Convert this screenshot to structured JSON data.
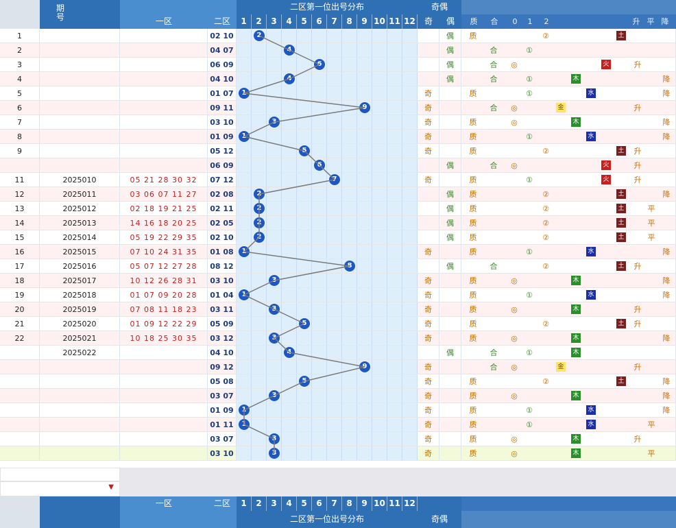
{
  "header": {
    "issue_label": "期号",
    "zone1_label": "一区",
    "zone2_label": "二区",
    "dist_title": "二区第一位出号分布",
    "oddeven_title": "奇偶",
    "col_nums": [
      "1",
      "2",
      "3",
      "4",
      "5",
      "6",
      "7",
      "8",
      "9",
      "10",
      "11",
      "12"
    ],
    "odd_label": "奇",
    "even_label": "偶",
    "tail_cols": [
      "质",
      "合",
      "0",
      "1",
      "2"
    ],
    "trend_cols": [
      "升",
      "平",
      "降"
    ]
  },
  "footer": {
    "zone1_label": "一区",
    "zone2_label": "二区",
    "dist_title": "二区第一位出号分布",
    "oddeven_title": "奇偶",
    "col_nums": [
      "1",
      "2",
      "3",
      "4",
      "5",
      "6",
      "7",
      "8",
      "9",
      "10",
      "11",
      "12"
    ]
  },
  "rows": [
    {
      "idx": "1",
      "issue": "",
      "z1": "",
      "z2": "02 10",
      "ball": 2,
      "oe": "偶",
      "type": "质",
      "circle": "",
      "num": "②",
      "elem": "土",
      "trend": ""
    },
    {
      "idx": "2",
      "issue": "",
      "z1": "",
      "z2": "04 07",
      "ball": 4,
      "oe": "偶",
      "type": "合",
      "circle": "①",
      "num": "",
      "elem": "",
      "trend": ""
    },
    {
      "idx": "3",
      "issue": "",
      "z1": "",
      "z2": "06 09",
      "ball": 6,
      "oe": "偶",
      "type": "合",
      "circle": "◎",
      "num": "",
      "elem": "火",
      "trend": "升"
    },
    {
      "idx": "4",
      "issue": "",
      "z1": "",
      "z2": "04 10",
      "ball": 4,
      "oe": "偶",
      "type": "合",
      "circle": "①",
      "num": "",
      "elem": "木",
      "trend": "降"
    },
    {
      "idx": "5",
      "issue": "",
      "z1": "",
      "z2": "01 07",
      "ball": 1,
      "oe": "奇",
      "type": "质",
      "circle": "①",
      "num": "",
      "elem": "水",
      "trend": "降"
    },
    {
      "idx": "6",
      "issue": "",
      "z1": "",
      "z2": "09 11",
      "ball": 9,
      "oe": "奇",
      "type": "合",
      "circle": "◎",
      "num": "",
      "elem": "金",
      "trend": "升"
    },
    {
      "idx": "7",
      "issue": "",
      "z1": "",
      "z2": "03 10",
      "ball": 3,
      "oe": "奇",
      "type": "质",
      "circle": "◎",
      "num": "",
      "elem": "木",
      "trend": "降"
    },
    {
      "idx": "8",
      "issue": "",
      "z1": "",
      "z2": "01 09",
      "ball": 1,
      "oe": "奇",
      "type": "质",
      "circle": "①",
      "num": "",
      "elem": "水",
      "trend": "降"
    },
    {
      "idx": "9",
      "issue": "",
      "z1": "",
      "z2": "05 12",
      "ball": 5,
      "oe": "奇",
      "type": "质",
      "circle": "",
      "num": "②",
      "elem": "土",
      "trend": "升"
    },
    {
      "idx": "",
      "issue": "",
      "z1": "",
      "z2": "06 09",
      "ball": 6,
      "oe": "偶",
      "type": "合",
      "circle": "◎",
      "num": "",
      "elem": "火",
      "trend": "升"
    },
    {
      "idx": "11",
      "issue": "2025010",
      "z1": "05 21 28 30 32",
      "z2": "07 12",
      "ball": 7,
      "oe": "奇",
      "type": "质",
      "circle": "①",
      "num": "",
      "elem": "火",
      "trend": "升"
    },
    {
      "idx": "12",
      "issue": "2025011",
      "z1": "03 06 07 11 27",
      "z2": "02 08",
      "ball": 2,
      "oe": "偶",
      "type": "质",
      "circle": "",
      "num": "②",
      "elem": "土",
      "trend": "降"
    },
    {
      "idx": "13",
      "issue": "2025012",
      "z1": "02 18 19 21 25",
      "z2": "02 11",
      "ball": 2,
      "oe": "偶",
      "type": "质",
      "circle": "",
      "num": "②",
      "elem": "土",
      "trend": "平"
    },
    {
      "idx": "14",
      "issue": "2025013",
      "z1": "14 16 18 20 25",
      "z2": "02 05",
      "ball": 2,
      "oe": "偶",
      "type": "质",
      "circle": "",
      "num": "②",
      "elem": "土",
      "trend": "平"
    },
    {
      "idx": "15",
      "issue": "2025014",
      "z1": "05 19 22 29 35",
      "z2": "02 10",
      "ball": 2,
      "oe": "偶",
      "type": "质",
      "circle": "",
      "num": "②",
      "elem": "土",
      "trend": "平"
    },
    {
      "idx": "16",
      "issue": "2025015",
      "z1": "07 10 24 31 35",
      "z2": "01 08",
      "ball": 1,
      "oe": "奇",
      "type": "质",
      "circle": "①",
      "num": "",
      "elem": "水",
      "trend": "降"
    },
    {
      "idx": "17",
      "issue": "2025016",
      "z1": "05 07 12 27 28",
      "z2": "08 12",
      "ball": 8,
      "oe": "偶",
      "type": "合",
      "circle": "",
      "num": "②",
      "elem": "土",
      "trend": "升"
    },
    {
      "idx": "18",
      "issue": "2025017",
      "z1": "10 12 26 28 31",
      "z2": "03 10",
      "ball": 3,
      "oe": "奇",
      "type": "质",
      "circle": "◎",
      "num": "",
      "elem": "木",
      "trend": "降"
    },
    {
      "idx": "19",
      "issue": "2025018",
      "z1": "01 07 09 20 28",
      "z2": "01 04",
      "ball": 1,
      "oe": "奇",
      "type": "质",
      "circle": "①",
      "num": "",
      "elem": "水",
      "trend": "降"
    },
    {
      "idx": "20",
      "issue": "2025019",
      "z1": "07 08 11 18 23",
      "z2": "03 11",
      "ball": 3,
      "oe": "奇",
      "type": "质",
      "circle": "◎",
      "num": "",
      "elem": "木",
      "trend": "升"
    },
    {
      "idx": "21",
      "issue": "2025020",
      "z1": "01 09 12 22 29",
      "z2": "05 09",
      "ball": 5,
      "oe": "奇",
      "type": "质",
      "circle": "",
      "num": "②",
      "elem": "土",
      "trend": "升"
    },
    {
      "idx": "22",
      "issue": "2025021",
      "z1": "10 18 25 30 35",
      "z2": "03 12",
      "ball": 3,
      "oe": "奇",
      "type": "质",
      "circle": "◎",
      "num": "",
      "elem": "木",
      "trend": "降"
    },
    {
      "idx": "",
      "issue": "2025022",
      "z1": "",
      "z2": "04 10",
      "ball": 4,
      "oe": "偶",
      "type": "合",
      "circle": "①",
      "num": "",
      "elem": "木",
      "trend": ""
    },
    {
      "idx": "",
      "issue": "",
      "z1": "",
      "z2": "09 12",
      "ball": 9,
      "oe": "奇",
      "type": "合",
      "circle": "◎",
      "num": "",
      "elem": "金",
      "trend": "升"
    },
    {
      "idx": "",
      "issue": "",
      "z1": "",
      "z2": "05 08",
      "ball": 5,
      "oe": "奇",
      "type": "质",
      "circle": "",
      "num": "②",
      "elem": "土",
      "trend": "降"
    },
    {
      "idx": "",
      "issue": "",
      "z1": "",
      "z2": "03 07",
      "ball": 3,
      "oe": "奇",
      "type": "质",
      "circle": "◎",
      "num": "",
      "elem": "木",
      "trend": "降"
    },
    {
      "idx": "",
      "issue": "",
      "z1": "",
      "z2": "01 09",
      "ball": 1,
      "oe": "奇",
      "type": "质",
      "circle": "①",
      "num": "",
      "elem": "水",
      "trend": "降"
    },
    {
      "idx": "",
      "issue": "",
      "z1": "",
      "z2": "01 11",
      "ball": 1,
      "oe": "奇",
      "type": "质",
      "circle": "①",
      "num": "",
      "elem": "水",
      "trend": "平"
    },
    {
      "idx": "",
      "issue": "",
      "z1": "",
      "z2": "03 07",
      "ball": 3,
      "oe": "奇",
      "type": "质",
      "circle": "◎",
      "num": "",
      "elem": "木",
      "trend": "升"
    },
    {
      "idx": "",
      "issue": "",
      "z1": "",
      "z2": "03 10",
      "ball": 3,
      "oe": "奇",
      "type": "质",
      "circle": "◎",
      "num": "",
      "elem": "木",
      "trend": "平"
    }
  ],
  "colors": {
    "accent": "#1e57c2",
    "header": "#2f6fb3",
    "odd": "#c87000",
    "even": "#3b8a2a"
  }
}
